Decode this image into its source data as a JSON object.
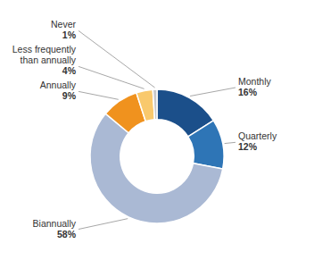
{
  "chart_data": {
    "type": "donut",
    "categories": [
      "Monthly",
      "Quarterly",
      "Biannually",
      "Annually",
      "Less frequently\nthan annually",
      "Never"
    ],
    "values": [
      16,
      12,
      58,
      9,
      4,
      1
    ],
    "value_labels": [
      "16%",
      "12%",
      "58%",
      "9%",
      "4%",
      "1%"
    ],
    "colors": [
      "#1B4F8A",
      "#2E75B6",
      "#AAB9D4",
      "#F0921E",
      "#F9C96D",
      "#C8C8C8"
    ],
    "data_labels": true
  }
}
